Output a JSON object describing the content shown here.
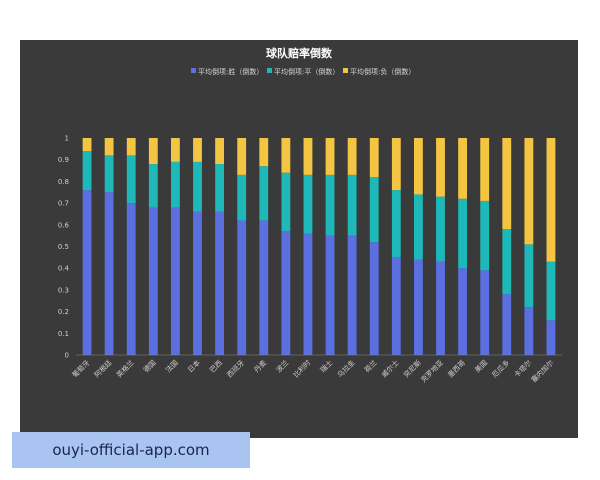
{
  "chart_data": {
    "type": "bar",
    "stacked": true,
    "title": "球队赔率倒数",
    "categories": [
      "葡萄牙",
      "阿根廷",
      "英格兰",
      "德国",
      "法国",
      "日本",
      "巴西",
      "西班牙",
      "丹麦",
      "波兰",
      "比利时",
      "瑞士",
      "乌拉圭",
      "荷兰",
      "威尔士",
      "突尼斯",
      "克罗地亚",
      "墨西哥",
      "美国",
      "厄瓜多",
      "卡塔尔",
      "塞内加尔"
    ],
    "series": [
      {
        "name": "平均倒项:胜（倒数）",
        "color": "#5b6fe0",
        "values": [
          0.76,
          0.75,
          0.7,
          0.68,
          0.68,
          0.66,
          0.66,
          0.62,
          0.62,
          0.57,
          0.56,
          0.55,
          0.55,
          0.52,
          0.45,
          0.44,
          0.43,
          0.4,
          0.39,
          0.28,
          0.22,
          0.16
        ]
      },
      {
        "name": "平均倒项:平（倒数）",
        "color": "#1fb8b8",
        "values": [
          0.18,
          0.17,
          0.22,
          0.2,
          0.21,
          0.23,
          0.22,
          0.21,
          0.25,
          0.27,
          0.27,
          0.28,
          0.28,
          0.3,
          0.31,
          0.3,
          0.3,
          0.32,
          0.32,
          0.3,
          0.29,
          0.27
        ]
      },
      {
        "name": "平均倒项:负（倒数）",
        "color": "#f4c542",
        "values": [
          0.06,
          0.08,
          0.08,
          0.12,
          0.11,
          0.11,
          0.12,
          0.17,
          0.13,
          0.16,
          0.17,
          0.17,
          0.17,
          0.18,
          0.24,
          0.26,
          0.27,
          0.28,
          0.29,
          0.42,
          0.49,
          0.57
        ]
      }
    ],
    "ylim": [
      0,
      1
    ],
    "yticks": [
      "0",
      "0.1",
      "0.2",
      "0.3",
      "0.4",
      "0.5",
      "0.6",
      "0.7",
      "0.8",
      "0.9",
      "1"
    ],
    "legend": "top-center",
    "grid": false
  },
  "watermark": "ouyi-official-app.com"
}
